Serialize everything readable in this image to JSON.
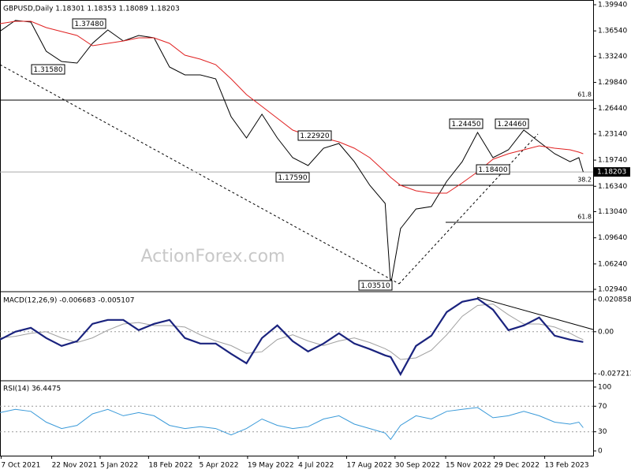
{
  "chart_data": [
    {
      "type": "line",
      "title": "GBPUSD,Daily  1.18301 1.18353 1.18089 1.18203",
      "watermark": "ActionForex.com",
      "xlim": [
        "2021-10-06",
        "2023-03-29"
      ],
      "ylim": [
        1.0284,
        1.4035
      ],
      "yticks": [
        {
          "value": 1.3994,
          "label": "1.39940"
        },
        {
          "value": 1.3654,
          "label": "1.36540"
        },
        {
          "value": 1.3324,
          "label": "1.33240"
        },
        {
          "value": 1.2984,
          "label": "1.29840"
        },
        {
          "value": 1.2644,
          "label": "1.26440"
        },
        {
          "value": 1.2314,
          "label": "1.23140"
        },
        {
          "value": 1.1974,
          "label": "1.19740"
        },
        {
          "value": 1.1634,
          "label": "1.16340"
        },
        {
          "value": 1.1304,
          "label": "1.13040"
        },
        {
          "value": 1.0964,
          "label": "1.09640"
        },
        {
          "value": 1.0624,
          "label": "1.06240"
        },
        {
          "value": 1.0294,
          "label": "1.02940"
        }
      ],
      "x": [
        "2021-10-06",
        "2021-10-20",
        "2021-11-03",
        "2021-11-17",
        "2021-12-01",
        "2021-12-15",
        "2021-12-29",
        "2022-01-12",
        "2022-01-26",
        "2022-02-09",
        "2022-02-23",
        "2022-03-09",
        "2022-03-23",
        "2022-04-06",
        "2022-04-20",
        "2022-05-04",
        "2022-05-18",
        "2022-06-01",
        "2022-06-15",
        "2022-06-29",
        "2022-07-13",
        "2022-07-27",
        "2022-08-10",
        "2022-08-24",
        "2022-09-07",
        "2022-09-21",
        "2022-09-26",
        "2022-10-05",
        "2022-10-19",
        "2022-11-02",
        "2022-11-16",
        "2022-11-30",
        "2022-12-14",
        "2022-12-28",
        "2023-01-11",
        "2023-01-25",
        "2023-02-08",
        "2023-02-22",
        "2023-03-08",
        "2023-03-16",
        "2023-03-20"
      ],
      "series": [
        {
          "name": "GBPUSD",
          "color": "#000000",
          "values": [
            1.365,
            1.379,
            1.3769,
            1.3389,
            1.3256,
            1.3236,
            1.3492,
            1.3666,
            1.3523,
            1.3594,
            1.3564,
            1.3184,
            1.3082,
            1.3082,
            1.3031,
            1.2539,
            1.2262,
            1.257,
            1.2262,
            1.2006,
            1.1903,
            1.2129,
            1.219,
            1.1954,
            1.1647,
            1.1411,
            1.0351,
            1.1083,
            1.1339,
            1.137,
            1.1698,
            1.1954,
            1.2334,
            1.2006,
            1.2108,
            1.2364,
            1.2211,
            1.2057,
            1.1954,
            1.2006,
            1.18203
          ]
        },
        {
          "name": "MA",
          "color": "#e02020",
          "values": [
            1.3748,
            1.3779,
            1.3779,
            1.3697,
            1.3646,
            1.3594,
            1.3461,
            1.3492,
            1.3523,
            1.3564,
            1.3564,
            1.3492,
            1.3338,
            1.3287,
            1.3215,
            1.3031,
            1.2826,
            1.2672,
            1.2518,
            1.2364,
            1.2293,
            1.2262,
            1.2211,
            1.2129,
            1.2006,
            1.1821,
            1.175,
            1.1647,
            1.1575,
            1.1545,
            1.1545,
            1.1678,
            1.1821,
            1.1985,
            1.2057,
            1.2108,
            1.216,
            1.2129,
            1.2108,
            1.2078,
            1.2057
          ]
        }
      ],
      "annotations": [
        "1.37480",
        "1.31580",
        "1.22920",
        "1.17590",
        "1.03510",
        "1.24450",
        "1.24460",
        "1.18400"
      ],
      "levels": [
        {
          "value": 1.2754,
          "label": "61.8"
        },
        {
          "value": 1.1647,
          "label": "38.2"
        },
        {
          "value": 1.1165,
          "label": "61.8"
        }
      ],
      "last": {
        "value": 1.18203,
        "label": "1.18203"
      }
    },
    {
      "type": "line",
      "title": "MACD(12,26,9) -0.006683 -0.005107",
      "xlim": [
        "2021-10-06",
        "2023-03-29"
      ],
      "ylim": [
        -0.03131,
        0.02495
      ],
      "grid": "inner",
      "yticks": [
        0.020858,
        {
          "value": 0,
          "label": "0.00"
        },
        -0.027213
      ],
      "x": [
        "2021-10-06",
        "2021-10-20",
        "2021-11-03",
        "2021-11-17",
        "2021-12-01",
        "2021-12-15",
        "2021-12-29",
        "2022-01-12",
        "2022-01-26",
        "2022-02-09",
        "2022-02-23",
        "2022-03-09",
        "2022-03-23",
        "2022-04-06",
        "2022-04-20",
        "2022-05-04",
        "2022-05-18",
        "2022-06-01",
        "2022-06-15",
        "2022-06-29",
        "2022-07-13",
        "2022-07-27",
        "2022-08-10",
        "2022-08-24",
        "2022-09-07",
        "2022-09-21",
        "2022-09-26",
        "2022-10-05",
        "2022-10-19",
        "2022-11-02",
        "2022-11-16",
        "2022-11-30",
        "2022-12-14",
        "2022-12-28",
        "2023-01-11",
        "2023-01-25",
        "2023-02-08",
        "2023-02-22",
        "2023-03-08",
        "2023-03-16",
        "2023-03-20"
      ],
      "series": [
        {
          "name": "Signal",
          "color": "#a0a0a0",
          "values": [
            -0.004,
            -0.003,
            -0.001,
            0,
            -0.004,
            -0.007,
            -0.004,
            0.001,
            0.005,
            0.006,
            0.004,
            0.004,
            0.003,
            -0.002,
            -0.006,
            -0.009,
            -0.014,
            -0.013,
            -0.005,
            -0.002,
            -0.006,
            -0.009,
            -0.006,
            -0.004,
            -0.007,
            -0.011,
            -0.013,
            -0.018,
            -0.017,
            -0.012,
            -0.002,
            0.01,
            0.017,
            0.018,
            0.011,
            0.005,
            0.005,
            0.003,
            -0.001,
            -0.004,
            -0.005107
          ]
        },
        {
          "name": "MACD",
          "color": "#1a237e",
          "values": [
            -0.00512,
            0,
            0.00256,
            -0.00409,
            -0.00921,
            -0.00614,
            0.00512,
            0.00767,
            0.00767,
            0.00102,
            0.00512,
            0.00767,
            -0.00409,
            -0.00767,
            -0.00767,
            -0.01432,
            -0.02046,
            -0.00409,
            0.00409,
            -0.00614,
            -0.01279,
            -0.00767,
            -0.00102,
            -0.00767,
            -0.01125,
            -0.01535,
            -0.01637,
            -0.02762,
            -0.00921,
            -0.00256,
            0.01279,
            0.01944,
            0.02148,
            0.01432,
            0.00102,
            0.00409,
            0.00921,
            -0.00256,
            -0.00512,
            -0.00614,
            -0.006683
          ]
        }
      ]
    },
    {
      "type": "line",
      "title": "RSI(14) 36.4475",
      "xlim": [
        "2021-10-06",
        "2023-03-29"
      ],
      "ylim": [
        -7.4,
        108.6
      ],
      "grid": "inner",
      "yticks": [
        100,
        70,
        30,
        0
      ],
      "xticks": [
        {
          "value": "2021-10-07",
          "label": "7 Oct 2021"
        },
        {
          "value": "2021-11-22",
          "label": "22 Nov 2021"
        },
        {
          "value": "2022-01-05",
          "label": "5 Jan 2022"
        },
        {
          "value": "2022-02-18",
          "label": "18 Feb 2022"
        },
        {
          "value": "2022-04-05",
          "label": "5 Apr 2022"
        },
        {
          "value": "2022-05-19",
          "label": "19 May 2022"
        },
        {
          "value": "2022-07-04",
          "label": "4 Jul 2022"
        },
        {
          "value": "2022-08-17",
          "label": "17 Aug 2022"
        },
        {
          "value": "2022-09-30",
          "label": "30 Sep 2022"
        },
        {
          "value": "2022-11-15",
          "label": "15 Nov 2022"
        },
        {
          "value": "2022-12-29",
          "label": "29 Dec 2022"
        },
        {
          "value": "2023-02-13",
          "label": "13 Feb 2023"
        }
      ],
      "x": [
        "2021-10-06",
        "2021-10-20",
        "2021-11-03",
        "2021-11-17",
        "2021-12-01",
        "2021-12-15",
        "2021-12-29",
        "2022-01-12",
        "2022-01-26",
        "2022-02-09",
        "2022-02-23",
        "2022-03-09",
        "2022-03-23",
        "2022-04-06",
        "2022-04-20",
        "2022-05-04",
        "2022-05-18",
        "2022-06-01",
        "2022-06-15",
        "2022-06-29",
        "2022-07-13",
        "2022-07-27",
        "2022-08-10",
        "2022-08-24",
        "2022-09-07",
        "2022-09-21",
        "2022-09-26",
        "2022-10-05",
        "2022-10-19",
        "2022-11-02",
        "2022-11-16",
        "2022-11-30",
        "2022-12-14",
        "2022-12-28",
        "2023-01-11",
        "2023-01-25",
        "2023-02-08",
        "2023-02-22",
        "2023-03-08",
        "2023-03-16",
        "2023-03-20"
      ],
      "series": [
        {
          "name": "RSI",
          "color": "#3a9ad9",
          "values": [
            60,
            65,
            62,
            45,
            35,
            40,
            58,
            65,
            55,
            60,
            55,
            40,
            35,
            38,
            35,
            25,
            35,
            50,
            40,
            35,
            38,
            50,
            55,
            42,
            35,
            28,
            18,
            40,
            55,
            50,
            62,
            65,
            68,
            52,
            55,
            62,
            55,
            45,
            42,
            45,
            36.4475
          ]
        }
      ]
    }
  ]
}
